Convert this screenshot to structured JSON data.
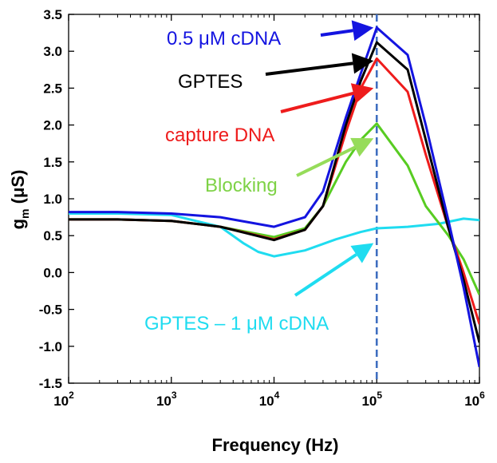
{
  "chart_data": {
    "type": "line",
    "xscale": "log",
    "xlim": [
      100,
      1000000
    ],
    "ylim": [
      -1.5,
      3.5
    ],
    "xlabel": "Frequency  (Hz)",
    "ylabel": {
      "main": "g",
      "sub": "m",
      "unit": "  (μS)"
    },
    "xticks": [
      {
        "value": 100,
        "base": "10",
        "exp": "2"
      },
      {
        "value": 1000,
        "base": "10",
        "exp": "3"
      },
      {
        "value": 10000,
        "base": "10",
        "exp": "4"
      },
      {
        "value": 100000,
        "base": "10",
        "exp": "5"
      },
      {
        "value": 1000000,
        "base": "10",
        "exp": "6"
      }
    ],
    "yticks": [
      "3.5",
      "3.0",
      "2.5",
      "2.0",
      "1.5",
      "1.0",
      "0.5",
      "0.0",
      "-0.5",
      "-1.0",
      "-1.5"
    ],
    "marker_line": {
      "x": 100000,
      "color": "#3f6ec0"
    },
    "series": [
      {
        "name": "GPTES – 1 μM cDNA",
        "color": "#1fdcf0",
        "points": [
          [
            100,
            0.8
          ],
          [
            300,
            0.8
          ],
          [
            1000,
            0.78
          ],
          [
            3000,
            0.62
          ],
          [
            5000,
            0.4
          ],
          [
            7000,
            0.28
          ],
          [
            10000,
            0.22
          ],
          [
            20000,
            0.3
          ],
          [
            40000,
            0.45
          ],
          [
            70000,
            0.55
          ],
          [
            100000,
            0.6
          ],
          [
            200000,
            0.62
          ],
          [
            400000,
            0.66
          ],
          [
            700000,
            0.73
          ],
          [
            1000000,
            0.71
          ]
        ]
      },
      {
        "name": "Blocking",
        "color": "#58cc22",
        "points": [
          [
            100,
            0.72
          ],
          [
            300,
            0.72
          ],
          [
            1000,
            0.7
          ],
          [
            3000,
            0.62
          ],
          [
            10000,
            0.48
          ],
          [
            20000,
            0.6
          ],
          [
            30000,
            0.9
          ],
          [
            50000,
            1.5
          ],
          [
            70000,
            1.8
          ],
          [
            100000,
            2.02
          ],
          [
            200000,
            1.45
          ],
          [
            300000,
            0.9
          ],
          [
            500000,
            0.5
          ],
          [
            700000,
            0.18
          ],
          [
            1000000,
            -0.3
          ]
        ]
      },
      {
        "name": "capture DNA",
        "color": "#ee1c1c",
        "points": [
          [
            100,
            0.72
          ],
          [
            300,
            0.72
          ],
          [
            1000,
            0.7
          ],
          [
            3000,
            0.62
          ],
          [
            10000,
            0.45
          ],
          [
            20000,
            0.58
          ],
          [
            30000,
            0.9
          ],
          [
            50000,
            1.9
          ],
          [
            70000,
            2.5
          ],
          [
            100000,
            2.9
          ],
          [
            200000,
            2.45
          ],
          [
            300000,
            1.6
          ],
          [
            500000,
            0.6
          ],
          [
            700000,
            0.0
          ],
          [
            1000000,
            -0.7
          ]
        ]
      },
      {
        "name": "GPTES",
        "color": "#000000",
        "points": [
          [
            100,
            0.72
          ],
          [
            300,
            0.72
          ],
          [
            1000,
            0.7
          ],
          [
            3000,
            0.62
          ],
          [
            10000,
            0.44
          ],
          [
            20000,
            0.58
          ],
          [
            30000,
            0.9
          ],
          [
            50000,
            2.0
          ],
          [
            70000,
            2.6
          ],
          [
            100000,
            3.12
          ],
          [
            200000,
            2.75
          ],
          [
            300000,
            1.8
          ],
          [
            500000,
            0.6
          ],
          [
            700000,
            -0.1
          ],
          [
            1000000,
            -0.95
          ]
        ]
      },
      {
        "name": "0.5 μM cDNA",
        "color": "#1414e0",
        "points": [
          [
            100,
            0.82
          ],
          [
            300,
            0.82
          ],
          [
            1000,
            0.8
          ],
          [
            3000,
            0.75
          ],
          [
            10000,
            0.62
          ],
          [
            20000,
            0.75
          ],
          [
            30000,
            1.1
          ],
          [
            50000,
            2.1
          ],
          [
            70000,
            2.7
          ],
          [
            100000,
            3.32
          ],
          [
            200000,
            2.95
          ],
          [
            300000,
            2.0
          ],
          [
            500000,
            0.7
          ],
          [
            700000,
            -0.2
          ],
          [
            1000000,
            -1.28
          ]
        ]
      }
    ],
    "annotations": [
      {
        "text": "0.5 μM cDNA",
        "color": "#1414e0",
        "arrow_color": "#1414e0",
        "target": [
          100000,
          3.32
        ]
      },
      {
        "text": "GPTES",
        "color": "#000000",
        "arrow_color": "#000000",
        "target": [
          100000,
          2.87
        ]
      },
      {
        "text": "capture DNA",
        "color": "#ee1c1c",
        "arrow_color": "#ee1c1c",
        "target": [
          100000,
          2.5
        ]
      },
      {
        "text": "Blocking",
        "color": "#7ed246",
        "arrow_color": "#96dc5a",
        "target": [
          100000,
          1.82
        ]
      },
      {
        "text": "GPTES – 1 μM cDNA",
        "color": "#1fdcf0",
        "arrow_color": "#1fdcf0",
        "target": [
          100000,
          0.4
        ]
      }
    ]
  }
}
